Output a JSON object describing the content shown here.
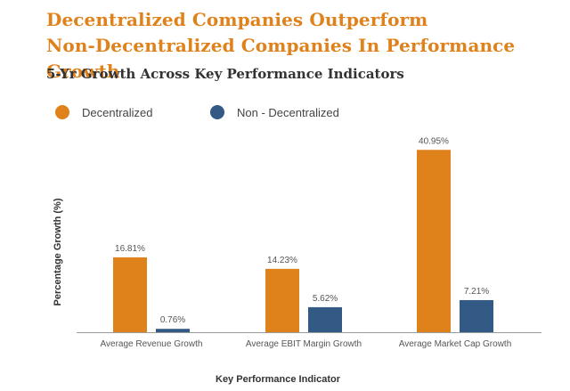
{
  "title_line1": "Decentralized Companies Outperform",
  "title_line2": "Non-Decentralized Companies In Performance Growth",
  "subtitle": "5-Yr Growth Across Key Performance Indicators",
  "colors": {
    "title": "#e0821c",
    "subtitle": "#333333",
    "decentralized": "#e0821c",
    "non_decentralized": "#335a85",
    "axis": "#9a9a9a"
  },
  "chart_data": {
    "type": "bar",
    "title": "Decentralized Companies Outperform Non-Decentralized Companies In Performance Growth",
    "subtitle": "5-Yr Growth Across Key Performance Indicators",
    "xlabel": "Key Performance Indicator",
    "ylabel": "Percentage Growth (%)",
    "categories": [
      "Average Revenue Growth",
      "Average EBIT Margin Growth",
      "Average Market Cap Growth"
    ],
    "series": [
      {
        "name": "Decentralized",
        "values": [
          16.81,
          14.23,
          40.95
        ],
        "labels": [
          "16.81%",
          "14.23%",
          "40.95%"
        ]
      },
      {
        "name": "Non - Decentralized",
        "values": [
          0.76,
          5.62,
          7.21
        ],
        "labels": [
          "0.76%",
          "5.62%",
          "7.21%"
        ]
      }
    ],
    "ylim": [
      0,
      41
    ],
    "grid": false,
    "legend": "top-left"
  }
}
